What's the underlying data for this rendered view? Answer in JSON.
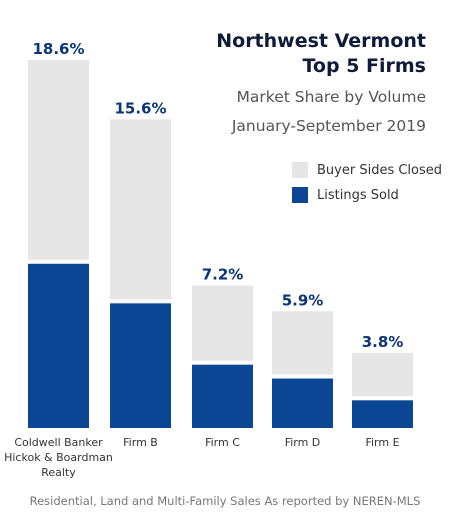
{
  "chart_data": {
    "type": "bar",
    "stacked": true,
    "title": "Northwest Vermont",
    "title_line2": "Top 5 Firms",
    "subtitle": "Market Share by Volume",
    "period": "January-September 2019",
    "categories": [
      "Coldwell Banker\nHickok & Boardman\nRealty",
      "Firm B",
      "Firm C",
      "Firm D",
      "Firm E"
    ],
    "category_lines": [
      [
        "Coldwell Banker",
        "Hickok & Boardman",
        "Realty"
      ],
      [
        "Firm B"
      ],
      [
        "Firm C"
      ],
      [
        "Firm D"
      ],
      [
        "Firm E"
      ]
    ],
    "totals": [
      18.6,
      15.6,
      7.2,
      5.9,
      3.8
    ],
    "total_labels": [
      "18.6%",
      "15.6%",
      "7.2%",
      "5.9%",
      "3.8%"
    ],
    "series": [
      {
        "name": "Listings Sold",
        "color": "#0a4694",
        "values": [
          8.3,
          6.3,
          3.2,
          2.5,
          1.4
        ]
      },
      {
        "name": "Buyer Sides Closed",
        "color": "#e6e6e6",
        "values": [
          10.3,
          9.3,
          4.0,
          3.4,
          2.4
        ]
      }
    ],
    "legend": [
      "Buyer Sides Closed",
      "Listings Sold"
    ],
    "legend_position": "top-right",
    "value_label_color": "#0a3578",
    "grid": false,
    "ylim": [
      0,
      18.6
    ]
  },
  "footnote": "Residential, Land and Multi-Family Sales As reported by NEREN-MLS"
}
